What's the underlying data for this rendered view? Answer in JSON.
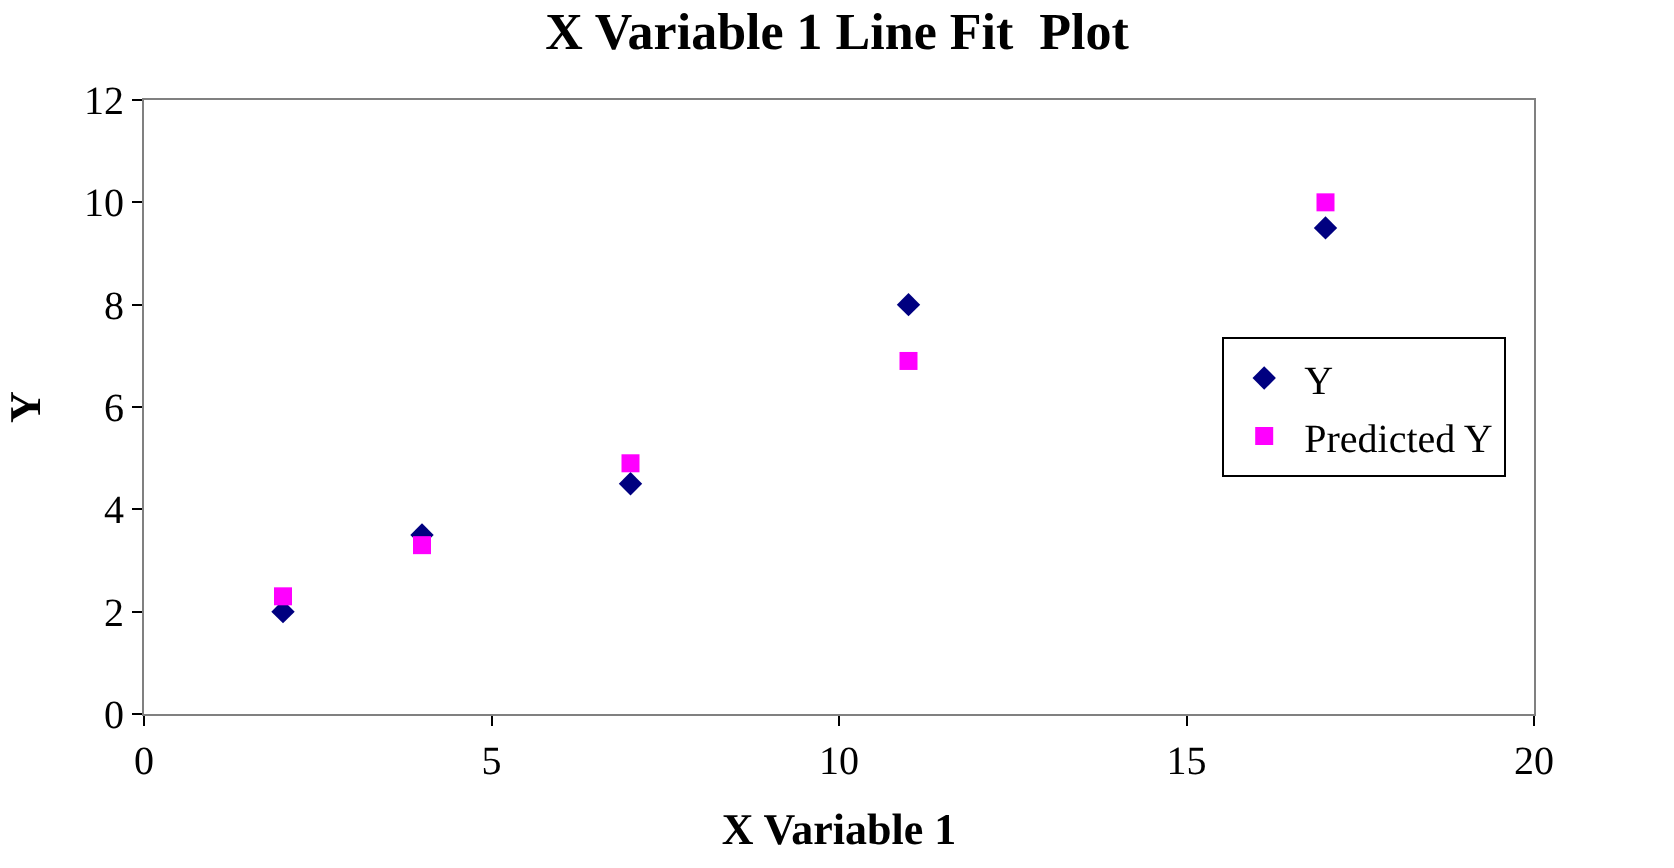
{
  "chart_data": {
    "type": "scatter",
    "title": "X Variable 1 Line Fit  Plot",
    "xlabel": "X Variable 1",
    "ylabel": "Y",
    "x": [
      2,
      4,
      7,
      11,
      17
    ],
    "series": [
      {
        "name": "Y",
        "color": "#000080",
        "marker": "diamond",
        "values": [
          2,
          3.5,
          4.5,
          8,
          9.5
        ]
      },
      {
        "name": "Predicted Y",
        "color": "#ff00ff",
        "marker": "square",
        "values": [
          2.3,
          3.3,
          4.9,
          6.9,
          10.0
        ]
      }
    ],
    "xlim": [
      0,
      20
    ],
    "xticks": [
      0,
      5,
      10,
      15,
      20
    ],
    "ylim": [
      0,
      12
    ],
    "yticks": [
      0,
      2,
      4,
      6,
      8,
      10,
      12
    ],
    "grid": false,
    "legend": "right"
  }
}
